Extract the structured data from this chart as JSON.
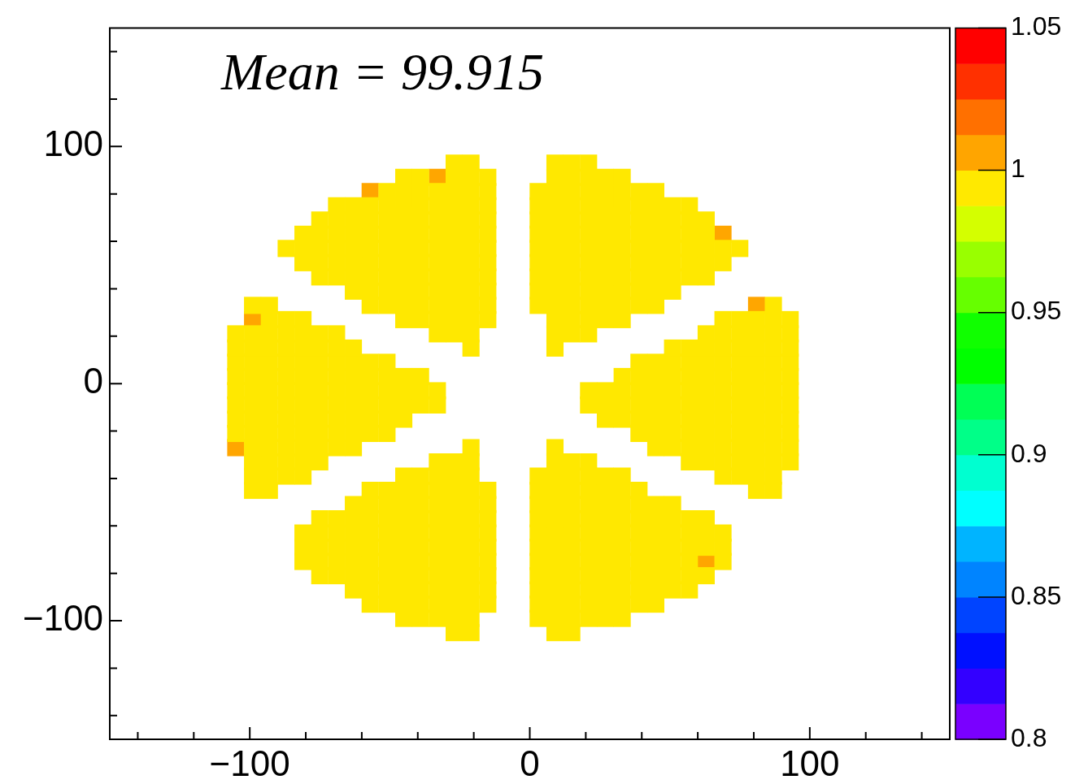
{
  "chart_data": {
    "type": "scatter",
    "marker": "square",
    "annotations": [
      "Mean = 99.915"
    ],
    "xlim": [
      -150,
      150
    ],
    "ylim": [
      -150,
      150
    ],
    "xticks": [
      {
        "value": -140,
        "label": null
      },
      {
        "value": -120,
        "label": null
      },
      {
        "value": -100,
        "label": "−100"
      },
      {
        "value": -80,
        "label": null
      },
      {
        "value": -60,
        "label": null
      },
      {
        "value": -40,
        "label": null
      },
      {
        "value": -20,
        "label": null
      },
      0,
      {
        "value": 20,
        "label": null
      },
      {
        "value": 40,
        "label": null
      },
      {
        "value": 60,
        "label": null
      },
      {
        "value": 80,
        "label": null
      },
      100,
      {
        "value": 120,
        "label": null
      },
      {
        "value": 140,
        "label": null
      }
    ],
    "yticks": [
      {
        "value": -140,
        "label": null
      },
      {
        "value": -120,
        "label": null
      },
      {
        "value": -100,
        "label": "−100"
      },
      {
        "value": -80,
        "label": null
      },
      {
        "value": -60,
        "label": null
      },
      {
        "value": -40,
        "label": null
      },
      {
        "value": -20,
        "label": null
      },
      0,
      {
        "value": 20,
        "label": null
      },
      {
        "value": 40,
        "label": null
      },
      {
        "value": 60,
        "label": null
      },
      {
        "value": 80,
        "label": null
      },
      100,
      {
        "value": 120,
        "label": null
      },
      {
        "value": 140,
        "label": null
      }
    ],
    "clim": [
      0.8,
      1.05
    ],
    "cticks": [
      0.8,
      0.85,
      0.9,
      0.95,
      1,
      1.05
    ],
    "colors": [
      "#7a00ff",
      "#3300ff",
      "#0010ff",
      "#0044ff",
      "#0084ff",
      "#00b4ff",
      "#00ffff",
      "#00ffd0",
      "#00ff88",
      "#00ff55",
      "#00ff00",
      "#10ff00",
      "#66ff00",
      "#99ff00",
      "#d4ff00",
      "#ffe900",
      "#ffa500",
      "#ff7000",
      "#ff3000",
      "#ff0000"
    ],
    "series": [
      {
        "x": [
          -27,
          -21,
          9,
          15,
          21
        ],
        "values": [
          93,
          93,
          93,
          93,
          93
        ],
        "cvalues": [
          0.994,
          0.994,
          0.994,
          0.994,
          0.994
        ]
      },
      {
        "x": [
          -45,
          -39,
          -27,
          -21,
          -15,
          9,
          15,
          21,
          27,
          33
        ],
        "values": [
          87,
          87,
          87,
          87,
          87,
          87,
          87,
          87,
          87,
          87
        ],
        "cvalues": [
          0.994,
          0.994,
          0.994,
          0.994,
          0.994,
          0.994,
          0.994,
          0.994,
          0.994,
          0.994
        ]
      },
      {
        "x": [
          -51,
          -45,
          -39,
          -33,
          -27,
          -21,
          -15,
          3,
          9,
          15,
          21,
          27,
          33,
          39,
          45
        ],
        "values": [
          81,
          81,
          81,
          81,
          81,
          81,
          81,
          81,
          81,
          81,
          81,
          81,
          81,
          81,
          81
        ],
        "cvalues": [
          0.994,
          0.994,
          0.994,
          0.994,
          0.994,
          0.994,
          0.994,
          0.994,
          0.994,
          0.994,
          0.994,
          0.994,
          0.994,
          0.994,
          0.994
        ]
      },
      {
        "x": [
          -69,
          -63,
          -57,
          -51,
          -45,
          -39,
          -33,
          -27,
          -21,
          -15,
          3,
          9,
          15,
          21,
          27,
          33,
          39,
          45,
          51,
          57
        ],
        "values": [
          75,
          75,
          75,
          75,
          75,
          75,
          75,
          75,
          75,
          75,
          75,
          75,
          75,
          75,
          75,
          75,
          75,
          75,
          75,
          75
        ],
        "cvalues": [
          0.994,
          0.994,
          0.994,
          0.994,
          0.994,
          0.994,
          0.994,
          0.994,
          0.994,
          0.994,
          0.994,
          0.994,
          0.994,
          0.994,
          0.994,
          0.994,
          0.994,
          0.994,
          0.994,
          0.994
        ]
      },
      {
        "x": [
          -75,
          -69,
          -63,
          -57,
          -51,
          -45,
          -39,
          -33,
          -27,
          -21,
          -15,
          3,
          9,
          15,
          21,
          27,
          33,
          39,
          45,
          51,
          57,
          63
        ],
        "values": [
          69,
          69,
          69,
          69,
          69,
          69,
          69,
          69,
          69,
          69,
          69,
          69,
          69,
          69,
          69,
          69,
          69,
          69,
          69,
          69,
          69,
          69
        ],
        "cvalues": [
          0.994,
          0.994,
          0.994,
          0.994,
          0.994,
          0.994,
          0.994,
          0.994,
          0.994,
          0.994,
          0.994,
          0.994,
          0.994,
          0.994,
          0.994,
          0.994,
          0.994,
          0.994,
          0.994,
          0.994,
          0.994,
          0.994
        ]
      },
      {
        "x": [
          -81,
          -75,
          -69,
          -63,
          -57,
          -51,
          -45,
          -39,
          -33,
          -27,
          -21,
          -15,
          3,
          9,
          15,
          21,
          27,
          33,
          39,
          45,
          51,
          57,
          63
        ],
        "values": [
          63,
          63,
          63,
          63,
          63,
          63,
          63,
          63,
          63,
          63,
          63,
          63,
          63,
          63,
          63,
          63,
          63,
          63,
          63,
          63,
          63,
          63,
          63
        ],
        "cvalues": [
          0.994,
          0.994,
          0.994,
          0.994,
          0.994,
          0.994,
          0.994,
          0.994,
          0.994,
          0.994,
          0.994,
          0.994,
          0.994,
          0.994,
          0.994,
          0.994,
          0.994,
          0.994,
          0.994,
          0.994,
          0.994,
          0.994,
          0.994
        ]
      },
      {
        "x": [
          -87,
          -81,
          -75,
          -69,
          -63,
          -57,
          -51,
          -45,
          -39,
          -33,
          -27,
          -21,
          -15,
          3,
          9,
          15,
          21,
          27,
          33,
          39,
          45,
          51,
          57,
          63,
          69,
          75
        ],
        "values": [
          57,
          57,
          57,
          57,
          57,
          57,
          57,
          57,
          57,
          57,
          57,
          57,
          57,
          57,
          57,
          57,
          57,
          57,
          57,
          57,
          57,
          57,
          57,
          57,
          57,
          57
        ],
        "cvalues": [
          0.994,
          0.994,
          0.994,
          0.994,
          0.994,
          0.994,
          0.994,
          0.994,
          0.994,
          0.994,
          0.994,
          0.994,
          0.994,
          0.994,
          0.994,
          0.994,
          0.994,
          0.994,
          0.994,
          0.994,
          0.994,
          0.994,
          0.994,
          0.994,
          0.994,
          0.994
        ]
      },
      {
        "x": [
          -81,
          -75,
          -69,
          -63,
          -57,
          -51,
          -45,
          -39,
          -33,
          -27,
          -21,
          -15,
          3,
          9,
          15,
          21,
          27,
          33,
          39,
          45,
          51,
          57,
          63,
          69
        ],
        "values": [
          51,
          51,
          51,
          51,
          51,
          51,
          51,
          51,
          51,
          51,
          51,
          51,
          51,
          51,
          51,
          51,
          51,
          51,
          51,
          51,
          51,
          51,
          51,
          51
        ],
        "cvalues": [
          0.994,
          0.994,
          0.994,
          0.994,
          0.994,
          0.994,
          0.994,
          0.994,
          0.994,
          0.994,
          0.994,
          0.994,
          0.994,
          0.994,
          0.994,
          0.994,
          0.994,
          0.994,
          0.994,
          0.994,
          0.994,
          0.994,
          0.994,
          0.994
        ]
      },
      {
        "x": [
          -75,
          -69,
          -63,
          -57,
          -51,
          -45,
          -39,
          -33,
          -27,
          -21,
          -15,
          3,
          9,
          15,
          21,
          27,
          33,
          39,
          45,
          51,
          57,
          63
        ],
        "values": [
          45,
          45,
          45,
          45,
          45,
          45,
          45,
          45,
          45,
          45,
          45,
          45,
          45,
          45,
          45,
          45,
          45,
          45,
          45,
          45,
          45,
          45
        ],
        "cvalues": [
          0.994,
          0.994,
          0.994,
          0.994,
          0.994,
          0.994,
          0.994,
          0.994,
          0.994,
          0.994,
          0.994,
          0.994,
          0.994,
          0.994,
          0.994,
          0.994,
          0.994,
          0.994,
          0.994,
          0.994,
          0.994,
          0.994
        ]
      },
      {
        "x": [
          -63,
          -57,
          -51,
          -45,
          -39,
          -33,
          -27,
          -21,
          -15,
          3,
          9,
          15,
          21,
          27,
          33,
          39,
          45,
          51
        ],
        "values": [
          39,
          39,
          39,
          39,
          39,
          39,
          39,
          39,
          39,
          39,
          39,
          39,
          39,
          39,
          39,
          39,
          39,
          39
        ],
        "cvalues": [
          0.994,
          0.994,
          0.994,
          0.994,
          0.994,
          0.994,
          0.994,
          0.994,
          0.994,
          0.994,
          0.994,
          0.994,
          0.994,
          0.994,
          0.994,
          0.994,
          0.994,
          0.994
        ]
      },
      {
        "x": [
          -99,
          -93,
          -57,
          -51,
          -45,
          -39,
          -33,
          -27,
          -21,
          -15,
          3,
          9,
          15,
          21,
          27,
          33,
          39,
          45,
          87
        ],
        "values": [
          33,
          33,
          33,
          33,
          33,
          33,
          33,
          33,
          33,
          33,
          33,
          33,
          33,
          33,
          33,
          33,
          33,
          33,
          33
        ],
        "cvalues": [
          0.994,
          0.994,
          0.994,
          0.994,
          0.994,
          0.994,
          0.994,
          0.994,
          0.994,
          0.994,
          0.994,
          0.994,
          0.994,
          0.994,
          0.994,
          0.994,
          0.994,
          0.994,
          0.994
        ]
      },
      {
        "x": [
          -93,
          -87,
          -81,
          -45,
          -39,
          -33,
          -27,
          -21,
          -15,
          9,
          15,
          21,
          27,
          33,
          69,
          75,
          81,
          87,
          93
        ],
        "values": [
          27,
          27,
          27,
          27,
          27,
          27,
          27,
          27,
          27,
          27,
          27,
          27,
          27,
          27,
          27,
          27,
          27,
          27,
          27
        ],
        "cvalues": [
          0.994,
          0.994,
          0.994,
          0.994,
          0.994,
          0.994,
          0.994,
          0.994,
          0.994,
          0.994,
          0.994,
          0.994,
          0.994,
          0.994,
          0.994,
          0.994,
          0.994,
          0.994,
          0.994
        ]
      },
      {
        "x": [
          -105,
          -99,
          -93,
          -87,
          -81,
          -75,
          -69,
          -33,
          -27,
          -21,
          9,
          15,
          21,
          63,
          69,
          75,
          81,
          87,
          93
        ],
        "values": [
          21,
          21,
          21,
          21,
          21,
          21,
          21,
          21,
          21,
          21,
          21,
          21,
          21,
          21,
          21,
          21,
          21,
          21,
          21
        ],
        "cvalues": [
          0.994,
          0.994,
          0.994,
          0.994,
          0.994,
          0.994,
          0.994,
          0.994,
          0.994,
          0.994,
          0.994,
          0.994,
          0.994,
          0.994,
          0.994,
          0.994,
          0.994,
          0.994,
          0.994
        ]
      },
      {
        "x": [
          -105,
          -99,
          -93,
          -87,
          -81,
          -75,
          -69,
          -63,
          -21,
          9,
          51,
          57,
          63,
          69,
          75,
          81,
          87,
          93
        ],
        "values": [
          15,
          15,
          15,
          15,
          15,
          15,
          15,
          15,
          15,
          15,
          15,
          15,
          15,
          15,
          15,
          15,
          15,
          15
        ],
        "cvalues": [
          0.994,
          0.994,
          0.994,
          0.994,
          0.994,
          0.994,
          0.994,
          0.994,
          0.994,
          0.994,
          0.994,
          0.994,
          0.994,
          0.994,
          0.994,
          0.994,
          0.994,
          0.994
        ]
      },
      {
        "x": [
          -105,
          -99,
          -93,
          -87,
          -81,
          -75,
          -69,
          -63,
          -57,
          -51,
          39,
          45,
          51,
          57,
          63,
          69,
          75,
          81,
          87,
          93
        ],
        "values": [
          9,
          9,
          9,
          9,
          9,
          9,
          9,
          9,
          9,
          9,
          9,
          9,
          9,
          9,
          9,
          9,
          9,
          9,
          9,
          9
        ],
        "cvalues": [
          0.994,
          0.994,
          0.994,
          0.994,
          0.994,
          0.994,
          0.994,
          0.994,
          0.994,
          0.994,
          0.994,
          0.994,
          0.994,
          0.994,
          0.994,
          0.994,
          0.994,
          0.994,
          0.994,
          0.994
        ]
      },
      {
        "x": [
          -105,
          -99,
          -93,
          -87,
          -81,
          -75,
          -69,
          -63,
          -57,
          -51,
          -45,
          -39,
          33,
          39,
          45,
          51,
          57,
          63,
          69,
          75,
          81,
          87,
          93
        ],
        "values": [
          3,
          3,
          3,
          3,
          3,
          3,
          3,
          3,
          3,
          3,
          3,
          3,
          3,
          3,
          3,
          3,
          3,
          3,
          3,
          3,
          3,
          3,
          3
        ],
        "cvalues": [
          0.994,
          0.994,
          0.994,
          0.994,
          0.994,
          0.994,
          0.994,
          0.994,
          0.994,
          0.994,
          0.994,
          0.994,
          0.994,
          0.994,
          0.994,
          0.994,
          0.994,
          0.994,
          0.994,
          0.994,
          0.994,
          0.994,
          0.994
        ]
      },
      {
        "x": [
          -105,
          -99,
          -93,
          -87,
          -81,
          -75,
          -69,
          -63,
          -57,
          -51,
          -45,
          -39,
          -33,
          21,
          27,
          33,
          39,
          45,
          51,
          57,
          63,
          69,
          75,
          81,
          87,
          93
        ],
        "values": [
          -3,
          -3,
          -3,
          -3,
          -3,
          -3,
          -3,
          -3,
          -3,
          -3,
          -3,
          -3,
          -3,
          -3,
          -3,
          -3,
          -3,
          -3,
          -3,
          -3,
          -3,
          -3,
          -3,
          -3,
          -3,
          -3
        ],
        "cvalues": [
          0.994,
          0.994,
          0.994,
          0.994,
          0.994,
          0.994,
          0.994,
          0.994,
          0.994,
          0.994,
          0.994,
          0.994,
          0.994,
          0.994,
          0.994,
          0.994,
          0.994,
          0.994,
          0.994,
          0.994,
          0.994,
          0.994,
          0.994,
          0.994,
          0.994,
          0.994
        ]
      },
      {
        "x": [
          -105,
          -99,
          -93,
          -87,
          -81,
          -75,
          -69,
          -63,
          -57,
          -51,
          -45,
          -39,
          -33,
          21,
          27,
          33,
          39,
          45,
          51,
          57,
          63,
          69,
          75,
          81,
          87,
          93
        ],
        "values": [
          -9,
          -9,
          -9,
          -9,
          -9,
          -9,
          -9,
          -9,
          -9,
          -9,
          -9,
          -9,
          -9,
          -9,
          -9,
          -9,
          -9,
          -9,
          -9,
          -9,
          -9,
          -9,
          -9,
          -9,
          -9,
          -9
        ],
        "cvalues": [
          0.994,
          0.994,
          0.994,
          0.994,
          0.994,
          0.994,
          0.994,
          0.994,
          0.994,
          0.994,
          0.994,
          0.994,
          0.994,
          0.994,
          0.994,
          0.994,
          0.994,
          0.994,
          0.994,
          0.994,
          0.994,
          0.994,
          0.994,
          0.994,
          0.994,
          0.994
        ]
      },
      {
        "x": [
          -105,
          -99,
          -93,
          -87,
          -81,
          -75,
          -69,
          -63,
          -57,
          -51,
          -45,
          27,
          33,
          39,
          45,
          51,
          57,
          63,
          69,
          75,
          81,
          87,
          93
        ],
        "values": [
          -15,
          -15,
          -15,
          -15,
          -15,
          -15,
          -15,
          -15,
          -15,
          -15,
          -15,
          -15,
          -15,
          -15,
          -15,
          -15,
          -15,
          -15,
          -15,
          -15,
          -15,
          -15,
          -15
        ],
        "cvalues": [
          0.994,
          0.994,
          0.994,
          0.994,
          0.994,
          0.994,
          0.994,
          0.994,
          0.994,
          0.994,
          0.994,
          0.994,
          0.994,
          0.994,
          0.994,
          0.994,
          0.994,
          0.994,
          0.994,
          0.994,
          0.994,
          0.994,
          0.994
        ]
      },
      {
        "x": [
          -105,
          -99,
          -93,
          -87,
          -81,
          -75,
          -69,
          -63,
          -57,
          -51,
          39,
          45,
          51,
          57,
          63,
          69,
          75,
          81,
          87,
          93
        ],
        "values": [
          -21,
          -21,
          -21,
          -21,
          -21,
          -21,
          -21,
          -21,
          -21,
          -21,
          -21,
          -21,
          -21,
          -21,
          -21,
          -21,
          -21,
          -21,
          -21,
          -21
        ],
        "cvalues": [
          0.994,
          0.994,
          0.994,
          0.994,
          0.994,
          0.994,
          0.994,
          0.994,
          0.994,
          0.994,
          0.994,
          0.994,
          0.994,
          0.994,
          0.994,
          0.994,
          0.994,
          0.994,
          0.994,
          0.994
        ]
      },
      {
        "x": [
          -99,
          -93,
          -87,
          -81,
          -75,
          -69,
          -63,
          -21,
          9,
          45,
          51,
          57,
          63,
          69,
          75,
          81,
          87,
          93
        ],
        "values": [
          -27,
          -27,
          -27,
          -27,
          -27,
          -27,
          -27,
          -27,
          -27,
          -27,
          -27,
          -27,
          -27,
          -27,
          -27,
          -27,
          -27,
          -27
        ],
        "cvalues": [
          0.994,
          0.994,
          0.994,
          0.994,
          0.994,
          0.994,
          0.994,
          0.994,
          0.994,
          0.994,
          0.994,
          0.994,
          0.994,
          0.994,
          0.994,
          0.994,
          0.994,
          0.994
        ]
      },
      {
        "x": [
          -99,
          -93,
          -87,
          -81,
          -75,
          -33,
          -27,
          -21,
          9,
          15,
          21,
          57,
          63,
          69,
          75,
          81,
          87,
          93
        ],
        "values": [
          -33,
          -33,
          -33,
          -33,
          -33,
          -33,
          -33,
          -33,
          -33,
          -33,
          -33,
          -33,
          -33,
          -33,
          -33,
          -33,
          -33,
          -33
        ],
        "cvalues": [
          0.994,
          0.994,
          0.994,
          0.994,
          0.994,
          0.994,
          0.994,
          0.994,
          0.994,
          0.994,
          0.994,
          0.994,
          0.994,
          0.994,
          0.994,
          0.994,
          0.994,
          0.994
        ]
      },
      {
        "x": [
          -99,
          -93,
          -87,
          -81,
          -45,
          -39,
          -33,
          -27,
          -21,
          3,
          9,
          15,
          21,
          27,
          33,
          69,
          75,
          81,
          87
        ],
        "values": [
          -39,
          -39,
          -39,
          -39,
          -39,
          -39,
          -39,
          -39,
          -39,
          -39,
          -39,
          -39,
          -39,
          -39,
          -39,
          -39,
          -39,
          -39,
          -39
        ],
        "cvalues": [
          0.994,
          0.994,
          0.994,
          0.994,
          0.994,
          0.994,
          0.994,
          0.994,
          0.994,
          0.994,
          0.994,
          0.994,
          0.994,
          0.994,
          0.994,
          0.994,
          0.994,
          0.994,
          0.994
        ]
      },
      {
        "x": [
          -99,
          -93,
          -57,
          -51,
          -45,
          -39,
          -33,
          -27,
          -21,
          -15,
          3,
          9,
          15,
          21,
          27,
          33,
          39,
          81,
          87
        ],
        "values": [
          -45,
          -45,
          -45,
          -45,
          -45,
          -45,
          -45,
          -45,
          -45,
          -45,
          -45,
          -45,
          -45,
          -45,
          -45,
          -45,
          -45,
          -45,
          -45
        ],
        "cvalues": [
          0.994,
          0.994,
          0.994,
          0.994,
          0.994,
          0.994,
          0.994,
          0.994,
          0.994,
          0.994,
          0.994,
          0.994,
          0.994,
          0.994,
          0.994,
          0.994,
          0.994,
          0.994,
          0.994
        ]
      },
      {
        "x": [
          -63,
          -57,
          -51,
          -45,
          -39,
          -33,
          -27,
          -21,
          -15,
          3,
          9,
          15,
          21,
          27,
          33,
          39,
          45,
          51
        ],
        "values": [
          -51,
          -51,
          -51,
          -51,
          -51,
          -51,
          -51,
          -51,
          -51,
          -51,
          -51,
          -51,
          -51,
          -51,
          -51,
          -51,
          -51,
          -51
        ],
        "cvalues": [
          0.994,
          0.994,
          0.994,
          0.994,
          0.994,
          0.994,
          0.994,
          0.994,
          0.994,
          0.994,
          0.994,
          0.994,
          0.994,
          0.994,
          0.994,
          0.994,
          0.994,
          0.994
        ]
      },
      {
        "x": [
          -75,
          -69,
          -63,
          -57,
          -51,
          -45,
          -39,
          -33,
          -27,
          -21,
          -15,
          3,
          9,
          15,
          21,
          27,
          33,
          39,
          45,
          51,
          57,
          63
        ],
        "values": [
          -57,
          -57,
          -57,
          -57,
          -57,
          -57,
          -57,
          -57,
          -57,
          -57,
          -57,
          -57,
          -57,
          -57,
          -57,
          -57,
          -57,
          -57,
          -57,
          -57,
          -57,
          -57
        ],
        "cvalues": [
          0.994,
          0.994,
          0.994,
          0.994,
          0.994,
          0.994,
          0.994,
          0.994,
          0.994,
          0.994,
          0.994,
          0.994,
          0.994,
          0.994,
          0.994,
          0.994,
          0.994,
          0.994,
          0.994,
          0.994,
          0.994,
          0.994
        ]
      },
      {
        "x": [
          -81,
          -75,
          -69,
          -63,
          -57,
          -51,
          -45,
          -39,
          -33,
          -27,
          -21,
          -15,
          3,
          9,
          15,
          21,
          27,
          33,
          39,
          45,
          51,
          57,
          63,
          69
        ],
        "values": [
          -63,
          -63,
          -63,
          -63,
          -63,
          -63,
          -63,
          -63,
          -63,
          -63,
          -63,
          -63,
          -63,
          -63,
          -63,
          -63,
          -63,
          -63,
          -63,
          -63,
          -63,
          -63,
          -63,
          -63
        ],
        "cvalues": [
          0.994,
          0.994,
          0.994,
          0.994,
          0.994,
          0.994,
          0.994,
          0.994,
          0.994,
          0.994,
          0.994,
          0.994,
          0.994,
          0.994,
          0.994,
          0.994,
          0.994,
          0.994,
          0.994,
          0.994,
          0.994,
          0.994,
          0.994,
          0.994
        ]
      },
      {
        "x": [
          -81,
          -75,
          -69,
          -63,
          -57,
          -51,
          -45,
          -39,
          -33,
          -27,
          -21,
          -15,
          3,
          9,
          15,
          21,
          27,
          33,
          39,
          45,
          51,
          57,
          63,
          69
        ],
        "values": [
          -69,
          -69,
          -69,
          -69,
          -69,
          -69,
          -69,
          -69,
          -69,
          -69,
          -69,
          -69,
          -69,
          -69,
          -69,
          -69,
          -69,
          -69,
          -69,
          -69,
          -69,
          -69,
          -69,
          -69
        ],
        "cvalues": [
          0.994,
          0.994,
          0.994,
          0.994,
          0.994,
          0.994,
          0.994,
          0.994,
          0.994,
          0.994,
          0.994,
          0.994,
          0.994,
          0.994,
          0.994,
          0.994,
          0.994,
          0.994,
          0.994,
          0.994,
          0.994,
          0.994,
          0.994,
          0.994
        ]
      },
      {
        "x": [
          -81,
          -75,
          -69,
          -63,
          -57,
          -51,
          -45,
          -39,
          -33,
          -27,
          -21,
          -15,
          3,
          9,
          15,
          21,
          27,
          33,
          39,
          45,
          51,
          57,
          69
        ],
        "values": [
          -75,
          -75,
          -75,
          -75,
          -75,
          -75,
          -75,
          -75,
          -75,
          -75,
          -75,
          -75,
          -75,
          -75,
          -75,
          -75,
          -75,
          -75,
          -75,
          -75,
          -75,
          -75,
          -75
        ],
        "cvalues": [
          0.994,
          0.994,
          0.994,
          0.994,
          0.994,
          0.994,
          0.994,
          0.994,
          0.994,
          0.994,
          0.994,
          0.994,
          0.994,
          0.994,
          0.994,
          0.994,
          0.994,
          0.994,
          0.994,
          0.994,
          0.994,
          0.994,
          0.994
        ]
      },
      {
        "x": [
          -75,
          -69,
          -63,
          -57,
          -51,
          -45,
          -39,
          -33,
          -27,
          -21,
          -15,
          3,
          9,
          15,
          21,
          27,
          33,
          39,
          45,
          51,
          57,
          63
        ],
        "values": [
          -81,
          -81,
          -81,
          -81,
          -81,
          -81,
          -81,
          -81,
          -81,
          -81,
          -81,
          -81,
          -81,
          -81,
          -81,
          -81,
          -81,
          -81,
          -81,
          -81,
          -81,
          -81
        ],
        "cvalues": [
          0.994,
          0.994,
          0.994,
          0.994,
          0.994,
          0.994,
          0.994,
          0.994,
          0.994,
          0.994,
          0.994,
          0.994,
          0.994,
          0.994,
          0.994,
          0.994,
          0.994,
          0.994,
          0.994,
          0.994,
          0.994,
          0.994
        ]
      },
      {
        "x": [
          -63,
          -57,
          -51,
          -45,
          -39,
          -33,
          -27,
          -21,
          -15,
          3,
          9,
          15,
          21,
          27,
          33,
          39,
          45,
          51,
          57
        ],
        "values": [
          -87,
          -87,
          -87,
          -87,
          -87,
          -87,
          -87,
          -87,
          -87,
          -87,
          -87,
          -87,
          -87,
          -87,
          -87,
          -87,
          -87,
          -87,
          -87
        ],
        "cvalues": [
          0.994,
          0.994,
          0.994,
          0.994,
          0.994,
          0.994,
          0.994,
          0.994,
          0.994,
          0.994,
          0.994,
          0.994,
          0.994,
          0.994,
          0.994,
          0.994,
          0.994,
          0.994,
          0.994
        ]
      },
      {
        "x": [
          -57,
          -51,
          -45,
          -39,
          -33,
          -27,
          -21,
          -15,
          3,
          9,
          15,
          21,
          27,
          33,
          39,
          45
        ],
        "values": [
          -93,
          -93,
          -93,
          -93,
          -93,
          -93,
          -93,
          -93,
          -93,
          -93,
          -93,
          -93,
          -93,
          -93,
          -93,
          -93
        ],
        "cvalues": [
          0.994,
          0.994,
          0.994,
          0.994,
          0.994,
          0.994,
          0.994,
          0.994,
          0.994,
          0.994,
          0.994,
          0.994,
          0.994,
          0.994,
          0.994,
          0.994
        ]
      },
      {
        "x": [
          -45,
          -39,
          -33,
          -27,
          -21,
          3,
          9,
          15,
          21,
          27,
          33
        ],
        "values": [
          -99,
          -99,
          -99,
          -99,
          -99,
          -99,
          -99,
          -99,
          -99,
          -99,
          -99
        ],
        "cvalues": [
          0.994,
          0.994,
          0.994,
          0.994,
          0.994,
          0.994,
          0.994,
          0.994,
          0.994,
          0.994,
          0.994
        ]
      },
      {
        "x": [
          -27,
          -21,
          9,
          15
        ],
        "values": [
          -105,
          -105,
          -105,
          -105
        ],
        "cvalues": [
          0.994,
          0.994,
          0.994,
          0.994
        ]
      },
      {
        "x": [
          -33,
          -57,
          69,
          81,
          -99,
          -105,
          63
        ],
        "values": [
          87,
          81,
          63,
          33,
          27,
          -27,
          -75
        ],
        "cvalues": [
          1.006,
          1.006,
          1.006,
          1.006,
          1.006,
          1.006,
          1.006
        ]
      }
    ]
  }
}
